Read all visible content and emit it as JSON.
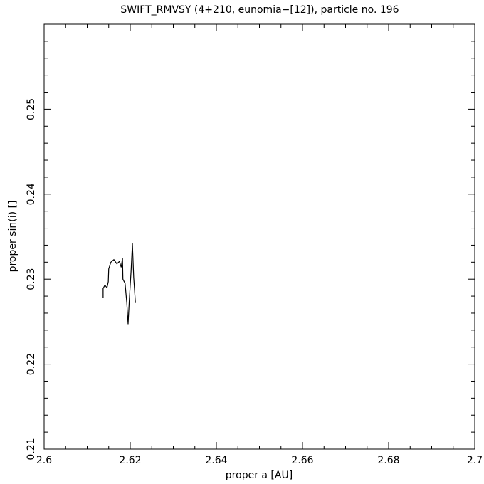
{
  "chart_data": {
    "type": "line",
    "title": "SWIFT_RMVSY (4+210, eunomia−[12]), particle no. 196",
    "xlabel": "proper a [AU]",
    "ylabel": "proper sin(i) []",
    "x": [
      2.6137,
      2.6137,
      2.6141,
      2.6146,
      2.6149,
      2.615,
      2.6155,
      2.6162,
      2.6169,
      2.6175,
      2.6179,
      2.6182,
      2.6183,
      2.6188,
      2.6192,
      2.6195,
      2.6198,
      2.6202,
      2.6205,
      2.6208,
      2.6212
    ],
    "values": [
      0.2278,
      0.2289,
      0.2293,
      0.229,
      0.2297,
      0.2312,
      0.232,
      0.2323,
      0.2318,
      0.2321,
      0.2314,
      0.2325,
      0.23,
      0.2295,
      0.2272,
      0.2247,
      0.2277,
      0.231,
      0.2342,
      0.2302,
      0.2272
    ],
    "color": "#000000",
    "xlim": [
      2.6,
      2.7
    ],
    "xticks": [
      2.6,
      2.62,
      2.64,
      2.66,
      2.68,
      2.7
    ],
    "xminorticks": [
      2.605,
      2.61,
      2.615,
      2.625,
      2.63,
      2.635,
      2.645,
      2.65,
      2.655,
      2.665,
      2.67,
      2.675,
      2.685,
      2.69,
      2.695
    ],
    "ylim": [
      0.21,
      0.26
    ],
    "yticks": [
      0.21,
      0.22,
      0.23,
      0.24,
      0.25
    ],
    "yminorticks": [
      0.212,
      0.214,
      0.216,
      0.218,
      0.222,
      0.224,
      0.226,
      0.228,
      0.232,
      0.234,
      0.236,
      0.238,
      0.242,
      0.244,
      0.246,
      0.248,
      0.252,
      0.254,
      0.256,
      0.258
    ],
    "grid": false
  }
}
